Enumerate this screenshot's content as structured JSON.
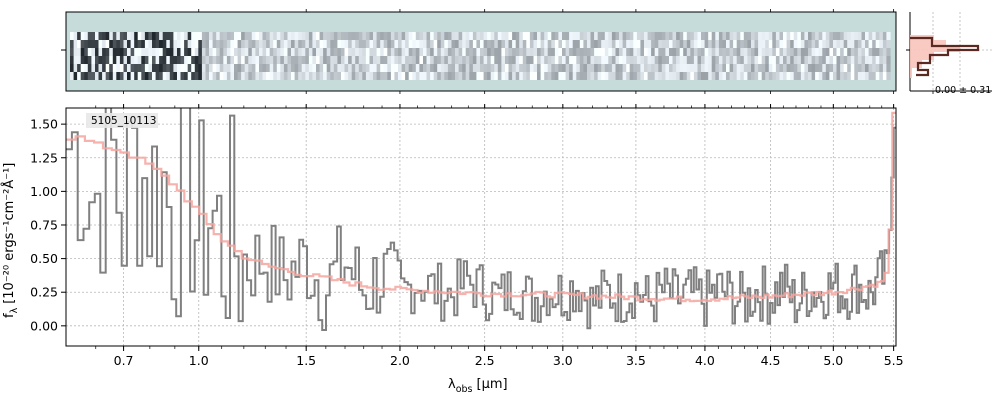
{
  "chart_data": {
    "type": "line",
    "object_id": "5105_10113",
    "xlabel": "λ",
    "xlabel_sub": "obs",
    "xlabel_unit": "[μm]",
    "ylabel": "f",
    "ylabel_sub": "λ",
    "ylabel_unit": "[10⁻²⁰ ergs⁻¹cm⁻²Å⁻¹]",
    "x_scale": "power",
    "xlim": [
      0.5,
      5.52
    ],
    "ylim": [
      -0.15,
      1.62
    ],
    "x_ticks": [
      {
        "value": 0.7,
        "label": "0.7"
      },
      {
        "value": 1.0,
        "label": "1.0"
      },
      {
        "value": 1.5,
        "label": "1.5"
      },
      {
        "value": 2.0,
        "label": "2.0"
      },
      {
        "value": 2.5,
        "label": "2.5"
      },
      {
        "value": 3.0,
        "label": "3.0"
      },
      {
        "value": 3.5,
        "label": "3.5"
      },
      {
        "value": 4.0,
        "label": "4.0"
      },
      {
        "value": 4.5,
        "label": "4.5"
      },
      {
        "value": 5.0,
        "label": "5.0"
      },
      {
        "value": 5.5,
        "label": "5.5"
      }
    ],
    "y_ticks": [
      {
        "value": 0.0,
        "label": "0.00"
      },
      {
        "value": 0.25,
        "label": "0.25"
      },
      {
        "value": 0.5,
        "label": "0.50"
      },
      {
        "value": 0.75,
        "label": "0.75"
      },
      {
        "value": 1.0,
        "label": "1.00"
      },
      {
        "value": 1.25,
        "label": "1.25"
      },
      {
        "value": 1.5,
        "label": "1.50"
      }
    ],
    "grid": true,
    "series": [
      {
        "role": "flux",
        "color": "#808080",
        "x": [
          0.55,
          0.6,
          0.65,
          0.7,
          0.75,
          0.8,
          0.85,
          0.9,
          0.95,
          1.0,
          1.05,
          1.1,
          1.15,
          1.2,
          1.3,
          1.4,
          1.5,
          1.6,
          1.7,
          1.8,
          1.9,
          2.0,
          2.1,
          2.2,
          2.3,
          2.4,
          2.5,
          2.6,
          2.7,
          2.8,
          2.9,
          3.0,
          3.1,
          3.2,
          3.3,
          3.4,
          3.5,
          3.6,
          3.7,
          3.8,
          3.9,
          4.0,
          4.1,
          4.2,
          4.3,
          4.4,
          4.5,
          4.6,
          4.7,
          4.8,
          4.9,
          5.0,
          5.1,
          5.2,
          5.3,
          5.4,
          5.45,
          5.5
        ],
        "y": [
          1.2,
          0.1,
          1.5,
          -0.1,
          1.3,
          0.6,
          1.0,
          0.2,
          1.6,
          0.3,
          1.1,
          0.5,
          0.9,
          0.3,
          0.6,
          0.25,
          0.7,
          0.1,
          0.8,
          0.2,
          0.55,
          0.15,
          0.45,
          0.3,
          0.2,
          0.5,
          0.3,
          0.15,
          0.4,
          0.1,
          0.35,
          0.25,
          0.45,
          0.05,
          0.3,
          0.2,
          0.4,
          0.1,
          0.35,
          0.2,
          0.3,
          0.15,
          0.4,
          0.25,
          0.1,
          0.35,
          0.2,
          0.45,
          0.05,
          0.3,
          0.25,
          0.4,
          0.2,
          0.35,
          0.1,
          0.45,
          0.3,
          1.6
        ]
      },
      {
        "role": "model",
        "color": "#f4a6a0",
        "x": [
          0.55,
          0.6,
          0.7,
          0.8,
          0.9,
          1.0,
          1.1,
          1.2,
          1.3,
          1.5,
          1.8,
          2.0,
          2.5,
          3.0,
          3.5,
          3.8,
          4.0,
          4.5,
          5.0,
          5.2,
          5.4,
          5.45,
          5.48,
          5.5
        ],
        "y": [
          1.4,
          1.35,
          1.3,
          1.2,
          1.05,
          0.85,
          0.65,
          0.52,
          0.45,
          0.38,
          0.3,
          0.27,
          0.24,
          0.23,
          0.21,
          0.2,
          0.2,
          0.22,
          0.25,
          0.28,
          0.32,
          0.4,
          0.8,
          1.6
        ]
      }
    ],
    "spectrum_2d_panel": {
      "colormap": "bone_r",
      "background_color": "#c5dcdb"
    },
    "profile_panel": {
      "annotation": "0.00 ± 0.31",
      "data_color": "#5a2a22",
      "model_color": "#f8c4bb"
    }
  }
}
